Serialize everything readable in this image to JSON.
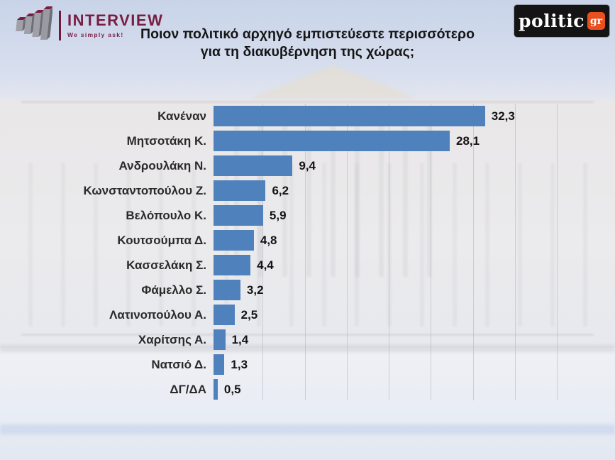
{
  "header": {
    "interview_logo": {
      "name": "INTERVIEW",
      "tagline": "We simply ask!"
    },
    "politic_logo": {
      "name": "politic",
      "suffix": "gr"
    }
  },
  "title": {
    "line1": "Ποιον πολιτικό αρχηγό εμπιστεύεστε περισσότερο",
    "line2": "για τη διακυβέρνηση της χώρας;"
  },
  "chart_data": {
    "type": "bar",
    "orientation": "horizontal",
    "title": "Ποιον πολιτικό αρχηγό εμπιστεύεστε περισσότερο για τη διακυβέρνηση της χώρας;",
    "categories": [
      "Κανέναν",
      "Μητσοτάκη Κ.",
      "Ανδρουλάκη Ν.",
      "Κωνσταντοπούλου Ζ.",
      "Βελόπουλο Κ.",
      "Κουτσούμπα Δ.",
      "Κασσελάκη Σ.",
      "Φάμελλο Σ.",
      "Λατινοπούλου Α.",
      "Χαρίτσης Α.",
      "Νατσιό Δ.",
      "ΔΓ/ΔΑ"
    ],
    "values": [
      32.3,
      28.1,
      9.4,
      6.2,
      5.9,
      4.8,
      4.4,
      3.2,
      2.5,
      1.4,
      1.3,
      0.5
    ],
    "value_labels": [
      "32,3",
      "28,1",
      "9,4",
      "6,2",
      "5,9",
      "4,8",
      "4,4",
      "3,2",
      "2,5",
      "1,4",
      "1,3",
      "0,5"
    ],
    "xlim": [
      0,
      40
    ],
    "gridline_step": 5,
    "grid": "vertical-faint",
    "legend": false,
    "bar_color": "#4f81bd",
    "data_labels": "outside-end"
  },
  "colors": {
    "bar": "#4f81bd",
    "brand_maroon": "#7a1d43",
    "politic_orange": "#e8501f",
    "sky": "#c9d4e9"
  }
}
